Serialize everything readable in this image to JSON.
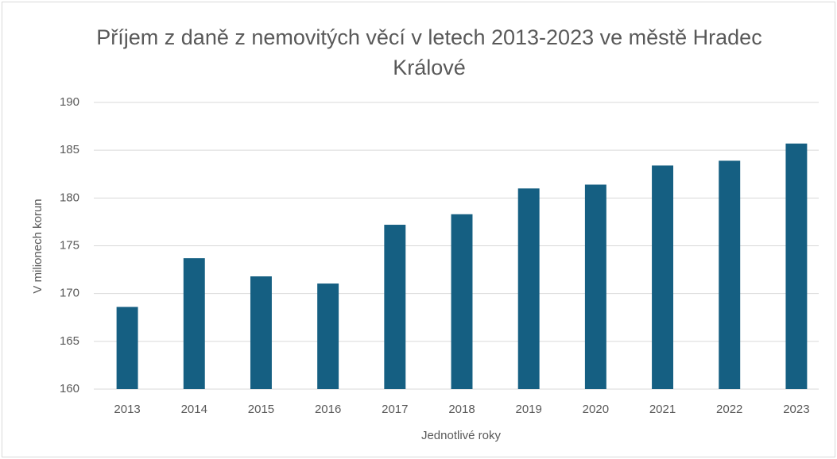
{
  "chart_data": {
    "type": "bar",
    "title": "Příjem z daně z nemovitých věcí v letech 2013-2023 ve městě Hradec Králové",
    "x_label": "Jednotlivé roky",
    "y_label": "V milionech korun",
    "categories": [
      "2013",
      "2014",
      "2015",
      "2016",
      "2017",
      "2018",
      "2019",
      "2020",
      "2021",
      "2022",
      "2023"
    ],
    "values": [
      168.6,
      173.7,
      171.8,
      171.05,
      177.2,
      178.3,
      181.0,
      181.4,
      183.4,
      183.9,
      185.7
    ],
    "color": "#155f82",
    "ylim": [
      160,
      190
    ],
    "yticks": [
      160,
      165,
      170,
      175,
      180,
      185,
      190
    ],
    "grid": true
  }
}
